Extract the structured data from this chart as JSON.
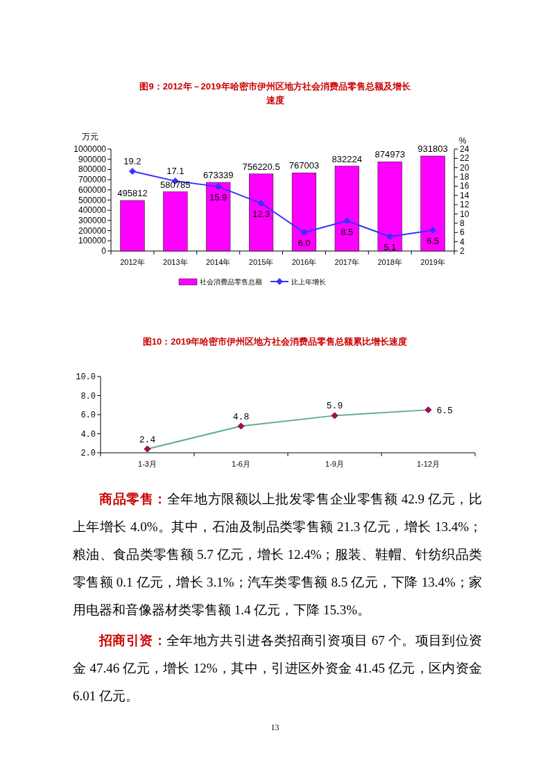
{
  "chart_data": [
    {
      "type": "bar",
      "title": "图9：2012年－2019年哈密市伊州区地方社会消费品零售总额及增长速度",
      "ylabel": "万元",
      "y2label": "%",
      "categories": [
        "2012年",
        "2013年",
        "2014年",
        "2015年",
        "2016年",
        "2017年",
        "2018年",
        "2019年"
      ],
      "series": [
        {
          "name": "社会消费品零售总额",
          "color": "#ff00ff",
          "values": [
            495812,
            580785,
            673339,
            756220.5,
            767003,
            832224,
            874973,
            931803
          ]
        },
        {
          "name": "比上年增长",
          "type": "line",
          "axis": "y2",
          "color": "#3333ff",
          "marker": "diamond",
          "values": [
            19.2,
            17.1,
            15.9,
            12.3,
            6.0,
            8.5,
            5.1,
            6.5
          ],
          "value_labels": [
            "19.2",
            "17.1",
            "15.9",
            "12.3",
            "6.0",
            "8.5",
            "5.1",
            "6.5"
          ]
        }
      ],
      "ylim": [
        0,
        1000000
      ],
      "yticks": [
        0,
        100000,
        200000,
        300000,
        400000,
        500000,
        600000,
        700000,
        800000,
        900000,
        1000000
      ],
      "y2lim": [
        2,
        24
      ],
      "y2ticks": [
        2,
        4,
        6,
        8,
        10,
        12,
        14,
        16,
        18,
        20,
        22,
        24
      ],
      "data_labels": true,
      "legend": "bottom",
      "grid": false
    },
    {
      "type": "line",
      "title": "图10：2019年哈密市伊州区地方社会消费品零售总额累比增长速度",
      "categories": [
        "1-3月",
        "1-6月",
        "1-9月",
        "1-12月"
      ],
      "series": [
        {
          "color": "#5fae8a",
          "values": [
            2.4,
            4.8,
            5.9,
            6.5
          ]
        }
      ],
      "marker": "diamond",
      "ylim": [
        2,
        10
      ],
      "yticks": [
        {
          "value": 2,
          "label": "2.0"
        },
        {
          "value": 4,
          "label": "4.0"
        },
        {
          "value": 6,
          "label": "6.0"
        },
        {
          "value": 8,
          "label": "8.0"
        },
        {
          "value": 10,
          "label": "10.0"
        }
      ],
      "data_labels": true,
      "legend": false,
      "grid": false,
      "annotations": [
        "商品零售：全年地方限额以上批发零售企业零售额 42.9 亿元，比上年增长 4.0%。其中，石油及制品类零售额 21.3 亿元，增长 13.4%；粮油、食品类零售额 5.7 亿元，增长 12.4%；服装、鞋帽、针纺织品类零售额 0.1 亿元，增长 3.1%；汽车类零售额 8.5 亿元，下降 13.4%；家用电器和音像器材类零售额 1.4 亿元，下降 15.3%。",
        "招商引资：全年地方共引进各类招商引资项目 67 个。项目到位资金 47.46 亿元，增长 12%，其中，引进区外资金 41.45 亿元，区内资金 6.01 亿元。",
        "13"
      ]
    }
  ]
}
